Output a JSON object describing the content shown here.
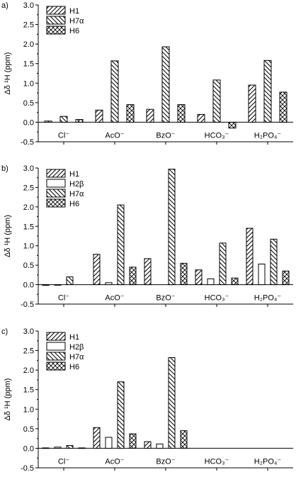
{
  "chart_data": [
    {
      "type": "bar",
      "panel_label": "a)",
      "ylabel": "Δδ ¹H (ppm)",
      "ylim": [
        -0.5,
        3.0
      ],
      "yticks": [
        "-0.5",
        "0.0",
        "0.5",
        "1.0",
        "1.5",
        "2.0",
        "2.5",
        "3.0"
      ],
      "categories": [
        "Cl⁻",
        "AcO⁻",
        "BzO⁻",
        "HCO₃⁻",
        "H₂PO₄⁻"
      ],
      "legend_position": "top-left",
      "series": [
        {
          "name": "H1",
          "pattern": "hatch-right",
          "values": [
            0.03,
            0.31,
            0.33,
            0.2,
            0.95
          ]
        },
        {
          "name": "H7α",
          "pattern": "hatch-left",
          "values": [
            0.15,
            1.57,
            1.93,
            1.08,
            1.58
          ]
        },
        {
          "name": "H6",
          "pattern": "crosshatch",
          "values": [
            0.07,
            0.45,
            0.45,
            -0.15,
            0.77
          ]
        }
      ]
    },
    {
      "type": "bar",
      "panel_label": "b)",
      "ylabel": "Δδ ¹H (ppm)",
      "ylim": [
        -0.5,
        3.0
      ],
      "yticks": [
        "-0.5",
        "0.0",
        "0.5",
        "1.0",
        "1.5",
        "2.0",
        "2.5",
        "3.0"
      ],
      "categories": [
        "Cl⁻",
        "AcO⁻",
        "BzO⁻",
        "HCO₃⁻",
        "H₂PO₄⁻"
      ],
      "legend_position": "top-left",
      "series": [
        {
          "name": "H1",
          "pattern": "hatch-right",
          "values": [
            -0.02,
            0.78,
            0.67,
            0.38,
            1.45
          ]
        },
        {
          "name": "H2β",
          "pattern": "blank",
          "values": [
            0.0,
            0.05,
            null,
            0.15,
            0.53
          ]
        },
        {
          "name": "H7α",
          "pattern": "hatch-left",
          "values": [
            0.2,
            2.05,
            2.97,
            1.07,
            1.17
          ]
        },
        {
          "name": "H6",
          "pattern": "crosshatch",
          "values": [
            null,
            0.45,
            0.55,
            0.17,
            0.35
          ]
        }
      ]
    },
    {
      "type": "bar",
      "panel_label": "c)",
      "ylabel": "Δδ ¹H (ppm)",
      "ylim": [
        -0.5,
        3.0
      ],
      "yticks": [
        "-0.5",
        "0.0",
        "0.5",
        "1.0",
        "1.5",
        "2.0",
        "2.5",
        "3.0"
      ],
      "categories": [
        "Cl⁻",
        "AcO⁻",
        "BzO⁻",
        "HCO₃⁻",
        "H₂PO₄⁻"
      ],
      "legend_position": "top-left",
      "series": [
        {
          "name": "H1",
          "pattern": "hatch-right",
          "values": [
            0.01,
            0.53,
            0.17,
            null,
            null
          ]
        },
        {
          "name": "H2β",
          "pattern": "blank",
          "values": [
            0.03,
            0.28,
            0.11,
            null,
            null
          ]
        },
        {
          "name": "H7α",
          "pattern": "hatch-left",
          "values": [
            0.07,
            1.7,
            2.32,
            null,
            null
          ]
        },
        {
          "name": "H6",
          "pattern": "crosshatch",
          "values": [
            0.01,
            0.37,
            0.45,
            null,
            null
          ]
        }
      ]
    }
  ]
}
